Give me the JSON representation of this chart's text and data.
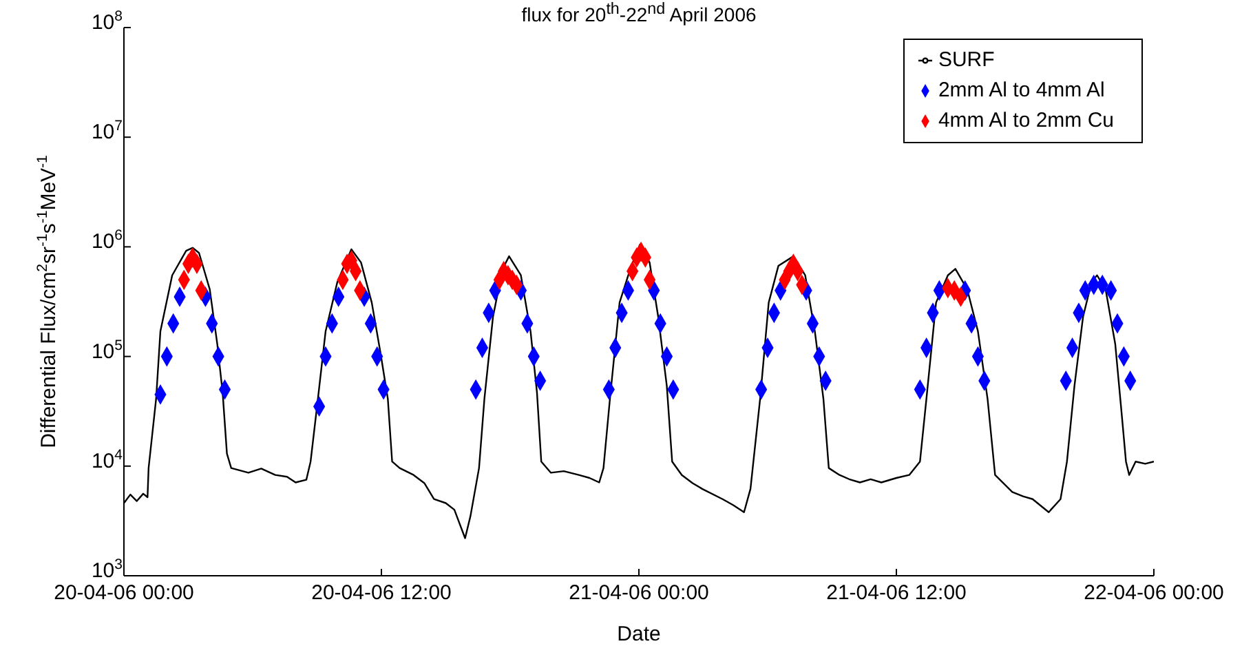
{
  "chart_data": {
    "type": "line",
    "title": "flux for 20$^{th}$-22$^{nd}$ April 2006",
    "xlabel": "Date",
    "ylabel": "Differential Flux/cm$^{2}$sr$^{-1}$s$^{-1}$MeV$^{-1}$",
    "log": "y",
    "xlim": [
      "2006-04-20T00:00",
      "2006-04-22T00:00"
    ],
    "xticks": [
      {
        "value": "2006-04-20T00:00",
        "label": "20-04-06 00:00"
      },
      {
        "value": "2006-04-20T12:00",
        "label": "20-04-06 12:00"
      },
      {
        "value": "2006-04-21T00:00",
        "label": "21-04-06 00:00"
      },
      {
        "value": "2006-04-21T12:00",
        "label": "21-04-06 12:00"
      },
      {
        "value": "2006-04-22T00:00",
        "label": "22-04-06 00:00"
      }
    ],
    "ylim": [
      1000,
      100000000
    ],
    "yticks": [
      {
        "value": 1000,
        "label": "10$^{3}$"
      },
      {
        "value": 10000,
        "label": "10$^{4}$"
      },
      {
        "value": 100000,
        "label": "10$^{5}$"
      },
      {
        "value": 1000000,
        "label": "10$^{6}$"
      },
      {
        "value": 10000000,
        "label": "10$^{7}$"
      },
      {
        "value": 100000000,
        "label": "10$^{8}$"
      }
    ],
    "grid": false,
    "legend": "top right",
    "series": [
      {
        "name": "SURF",
        "color": "#000000",
        "line_style": "solid",
        "marker": "none",
        "x": [
          "2006-04-20T00:00",
          "2006-04-20T00:18",
          "2006-04-20T00:36",
          "2006-04-20T00:54",
          "2006-04-20T01:06",
          "2006-04-20T01:09",
          "2006-04-20T01:30",
          "2006-04-20T01:42",
          "2006-04-20T02:15",
          "2006-04-20T02:54",
          "2006-04-20T03:12",
          "2006-04-20T03:30",
          "2006-04-20T04:00",
          "2006-04-20T04:21",
          "2006-04-20T04:36",
          "2006-04-20T04:48",
          "2006-04-20T05:00",
          "2006-04-20T05:48",
          "2006-04-20T06:24",
          "2006-04-20T07:03",
          "2006-04-20T07:36",
          "2006-04-20T08:00",
          "2006-04-20T08:30",
          "2006-04-20T08:42",
          "2006-04-20T09:00",
          "2006-04-20T09:24",
          "2006-04-20T09:57",
          "2006-04-20T10:36",
          "2006-04-20T11:03",
          "2006-04-20T11:33",
          "2006-04-20T11:57",
          "2006-04-20T12:18",
          "2006-04-20T12:30",
          "2006-04-20T12:51",
          "2006-04-20T13:30",
          "2006-04-20T14:00",
          "2006-04-20T14:27",
          "2006-04-20T15:00",
          "2006-04-20T15:24",
          "2006-04-20T15:54",
          "2006-04-20T16:09",
          "2006-04-20T16:33",
          "2006-04-20T16:48",
          "2006-04-20T17:12",
          "2006-04-20T17:39",
          "2006-04-20T17:57",
          "2006-04-20T18:30",
          "2006-04-20T18:57",
          "2006-04-20T19:15",
          "2006-04-20T19:27",
          "2006-04-20T19:54",
          "2006-04-20T20:30",
          "2006-04-20T21:12",
          "2006-04-20T21:42",
          "2006-04-20T22:09",
          "2006-04-20T22:21",
          "2006-04-20T22:39",
          "2006-04-20T23:06",
          "2006-04-20T23:36",
          "2006-04-21T00:03",
          "2006-04-21T00:30",
          "2006-04-21T00:54",
          "2006-04-21T01:18",
          "2006-04-21T01:33",
          "2006-04-21T02:00",
          "2006-04-21T02:30",
          "2006-04-21T02:57",
          "2006-04-21T03:54",
          "2006-04-21T04:24",
          "2006-04-21T04:54",
          "2006-04-21T05:12",
          "2006-04-21T05:39",
          "2006-04-21T06:03",
          "2006-04-21T06:30",
          "2006-04-21T07:12",
          "2006-04-21T07:45",
          "2006-04-21T08:12",
          "2006-04-21T08:36",
          "2006-04-21T08:51",
          "2006-04-21T09:21",
          "2006-04-21T09:48",
          "2006-04-21T10:18",
          "2006-04-21T10:48",
          "2006-04-21T11:18",
          "2006-04-21T12:00",
          "2006-04-21T12:36",
          "2006-04-21T13:06",
          "2006-04-21T13:24",
          "2006-04-21T13:51",
          "2006-04-21T14:24",
          "2006-04-21T14:45",
          "2006-04-21T15:18",
          "2006-04-21T15:48",
          "2006-04-21T16:15",
          "2006-04-21T16:36",
          "2006-04-21T17:24",
          "2006-04-21T17:54",
          "2006-04-21T18:21",
          "2006-04-21T19:06",
          "2006-04-21T19:39",
          "2006-04-21T19:57",
          "2006-04-21T20:18",
          "2006-04-21T20:42",
          "2006-04-21T21:06",
          "2006-04-21T21:21",
          "2006-04-21T21:45",
          "2006-04-21T22:12",
          "2006-04-21T22:30",
          "2006-04-21T22:42",
          "2006-04-21T22:51",
          "2006-04-21T23:09",
          "2006-04-21T23:36",
          "2006-04-22T00:00"
        ],
        "values": [
          4600,
          5500,
          4800,
          5600,
          5200,
          9600,
          41000,
          170000,
          550000,
          920000,
          980000,
          880000,
          410000,
          130000,
          47000,
          13000,
          9600,
          8700,
          9500,
          8300,
          8000,
          7100,
          7500,
          11000,
          35000,
          170000,
          480000,
          950000,
          720000,
          310000,
          110000,
          41000,
          11000,
          9600,
          8300,
          7000,
          5000,
          4600,
          4000,
          2200,
          3500,
          9600,
          41000,
          230000,
          630000,
          820000,
          550000,
          170000,
          47000,
          11000,
          8700,
          9000,
          8300,
          7800,
          7100,
          9600,
          41000,
          310000,
          630000,
          1050000,
          720000,
          230000,
          54000,
          11000,
          8300,
          7000,
          6200,
          5000,
          4400,
          3800,
          6200,
          41000,
          310000,
          670000,
          820000,
          550000,
          170000,
          41000,
          9600,
          8300,
          7600,
          7100,
          7600,
          7100,
          7800,
          8300,
          11000,
          41000,
          310000,
          550000,
          630000,
          410000,
          170000,
          41000,
          8300,
          5800,
          5300,
          5000,
          3800,
          5000,
          11000,
          54000,
          230000,
          480000,
          550000,
          410000,
          130000,
          30000,
          11000,
          8300,
          11000,
          10500,
          11000
        ]
      },
      {
        "name": "2mm Al to 4mm Al",
        "type": "scatter",
        "color": "#0000ff",
        "marker": "diamond",
        "x": [
          "2006-04-20T01:42",
          "2006-04-20T02:00",
          "2006-04-20T02:18",
          "2006-04-20T02:36",
          "2006-04-20T03:48",
          "2006-04-20T04:06",
          "2006-04-20T04:24",
          "2006-04-20T04:42",
          "2006-04-20T09:06",
          "2006-04-20T09:24",
          "2006-04-20T09:42",
          "2006-04-20T10:00",
          "2006-04-20T11:12",
          "2006-04-20T11:30",
          "2006-04-20T11:48",
          "2006-04-20T12:06",
          "2006-04-20T16:24",
          "2006-04-20T16:42",
          "2006-04-20T17:00",
          "2006-04-20T17:18",
          "2006-04-20T18:30",
          "2006-04-20T18:48",
          "2006-04-20T19:06",
          "2006-04-20T19:24",
          "2006-04-20T22:36",
          "2006-04-20T22:54",
          "2006-04-20T23:12",
          "2006-04-20T23:30",
          "2006-04-21T00:42",
          "2006-04-21T01:00",
          "2006-04-21T01:18",
          "2006-04-21T01:36",
          "2006-04-21T05:42",
          "2006-04-21T06:00",
          "2006-04-21T06:18",
          "2006-04-21T06:36",
          "2006-04-21T07:48",
          "2006-04-21T08:06",
          "2006-04-21T08:24",
          "2006-04-21T08:42",
          "2006-04-21T13:06",
          "2006-04-21T13:24",
          "2006-04-21T13:42",
          "2006-04-21T14:00",
          "2006-04-21T15:12",
          "2006-04-21T15:30",
          "2006-04-21T15:48",
          "2006-04-21T16:06",
          "2006-04-21T19:54",
          "2006-04-21T20:12",
          "2006-04-21T20:30",
          "2006-04-21T20:48",
          "2006-04-21T21:12",
          "2006-04-21T21:36",
          "2006-04-21T22:00",
          "2006-04-21T22:18",
          "2006-04-21T22:36",
          "2006-04-21T22:54"
        ],
        "values": [
          45000,
          100000,
          200000,
          350000,
          350000,
          200000,
          100000,
          50000,
          35000,
          100000,
          200000,
          350000,
          350000,
          200000,
          100000,
          50000,
          50000,
          120000,
          250000,
          400000,
          400000,
          200000,
          100000,
          60000,
          50000,
          120000,
          250000,
          400000,
          400000,
          200000,
          100000,
          50000,
          50000,
          120000,
          250000,
          400000,
          400000,
          200000,
          100000,
          60000,
          50000,
          120000,
          250000,
          400000,
          400000,
          200000,
          100000,
          60000,
          60000,
          120000,
          250000,
          400000,
          450000,
          450000,
          400000,
          200000,
          100000,
          60000
        ]
      },
      {
        "name": "4mm Al to 2mm Cu",
        "type": "scatter",
        "color": "#ff0000",
        "marker": "diamond",
        "x": [
          "2006-04-20T02:48",
          "2006-04-20T03:00",
          "2006-04-20T03:12",
          "2006-04-20T03:24",
          "2006-04-20T03:36",
          "2006-04-20T10:12",
          "2006-04-20T10:24",
          "2006-04-20T10:36",
          "2006-04-20T10:48",
          "2006-04-20T11:00",
          "2006-04-20T17:30",
          "2006-04-20T17:42",
          "2006-04-20T17:54",
          "2006-04-20T18:06",
          "2006-04-20T18:18",
          "2006-04-20T23:42",
          "2006-04-20T23:54",
          "2006-04-21T00:06",
          "2006-04-21T00:18",
          "2006-04-21T00:30",
          "2006-04-21T06:48",
          "2006-04-21T07:00",
          "2006-04-21T07:12",
          "2006-04-21T07:24",
          "2006-04-21T07:36",
          "2006-04-21T14:24",
          "2006-04-21T14:42",
          "2006-04-21T15:00"
        ],
        "values": [
          500000,
          700000,
          800000,
          700000,
          400000,
          500000,
          700000,
          750000,
          600000,
          400000,
          500000,
          600000,
          550000,
          500000,
          450000,
          600000,
          800000,
          900000,
          800000,
          500000,
          500000,
          600000,
          700000,
          600000,
          450000,
          420000,
          400000,
          350000
        ]
      }
    ]
  }
}
